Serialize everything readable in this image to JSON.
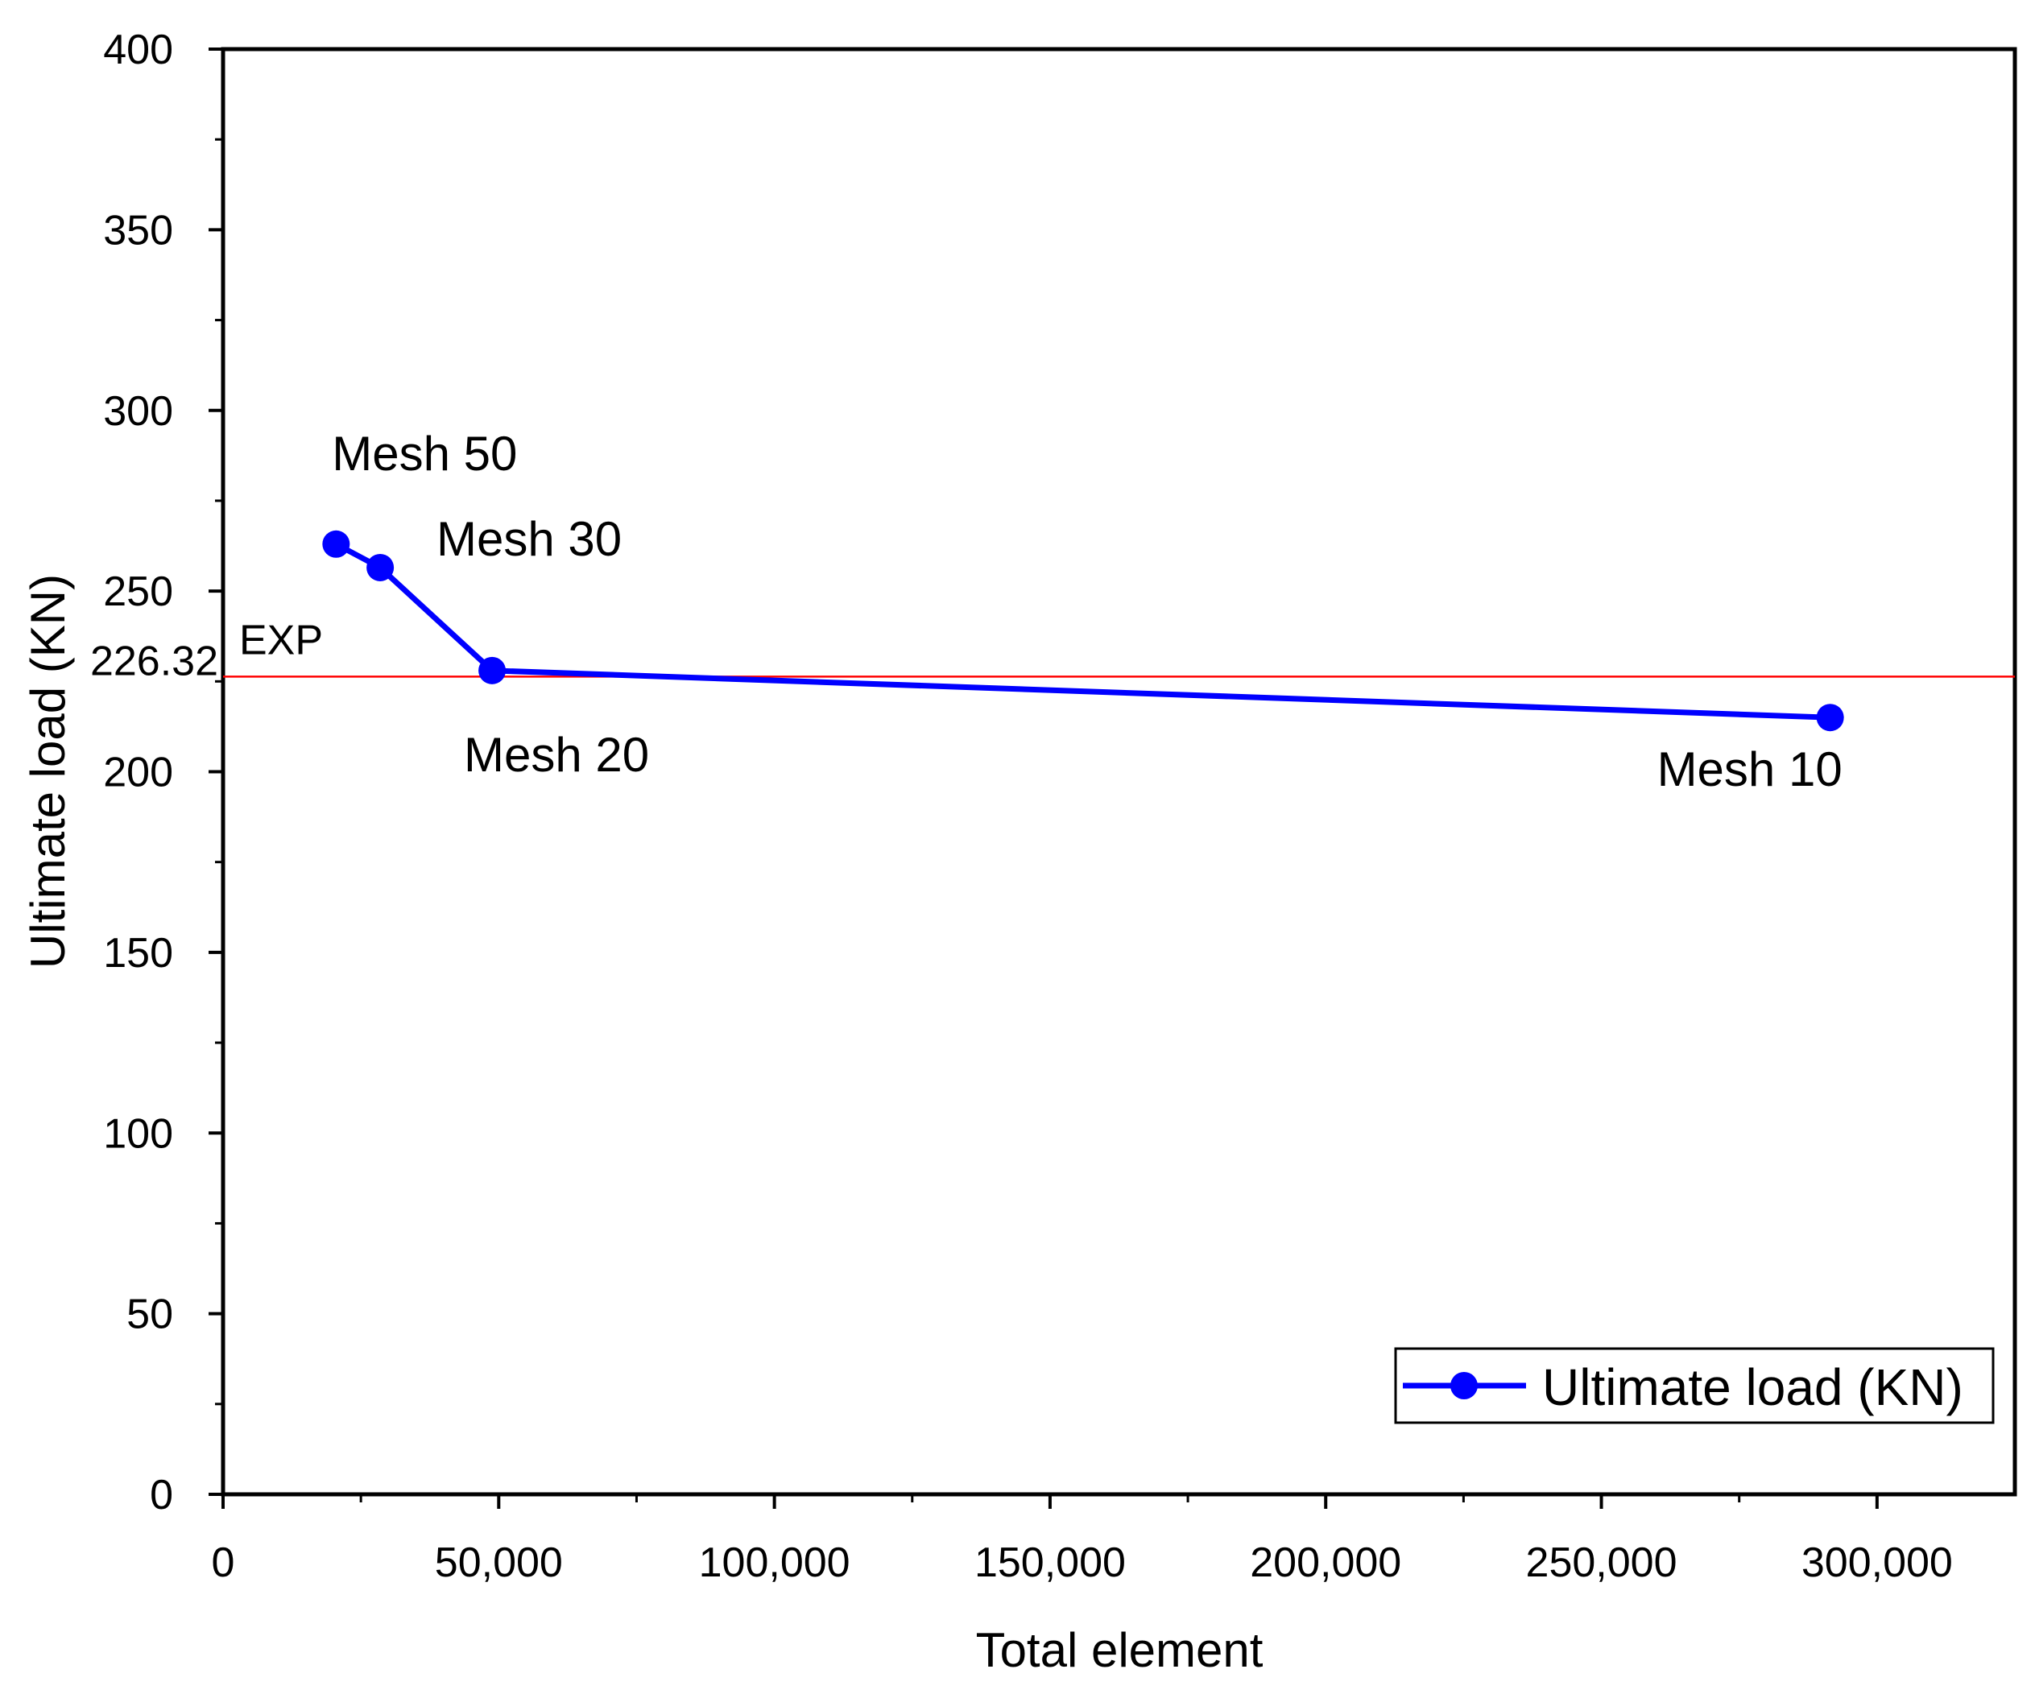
{
  "chart_data": {
    "type": "line",
    "title": "",
    "xlabel": "Total element",
    "ylabel": "Ultimate load (KN)",
    "xlim": [
      0,
      325000
    ],
    "ylim": [
      0,
      400
    ],
    "x_ticks": [
      0,
      50000,
      100000,
      150000,
      200000,
      250000,
      300000
    ],
    "x_tick_labels": [
      "0",
      "50,000",
      "100,000",
      "150,000",
      "200,000",
      "250,000",
      "300,000"
    ],
    "y_ticks": [
      0,
      50,
      100,
      150,
      200,
      250,
      300,
      350,
      400
    ],
    "y_tick_labels": [
      "0",
      "50",
      "100",
      "150",
      "200",
      "250",
      "300",
      "350",
      "400"
    ],
    "series": [
      {
        "name": "Ultimate load (KN)",
        "color": "#0000ff",
        "x": [
          20500,
          28500,
          48800,
          291500
        ],
        "values": [
          263,
          256.5,
          228,
          215
        ],
        "point_labels": [
          "Mesh 50",
          "Mesh 30",
          "Mesh 20",
          "Mesh 10"
        ]
      }
    ],
    "reference_line": {
      "value": 226.32,
      "value_label": "226.32",
      "label": "EXP",
      "color": "#ff0000"
    },
    "legend": {
      "position": "bottom-right",
      "entries": [
        "Ultimate load (KN)"
      ]
    },
    "grid": false
  }
}
